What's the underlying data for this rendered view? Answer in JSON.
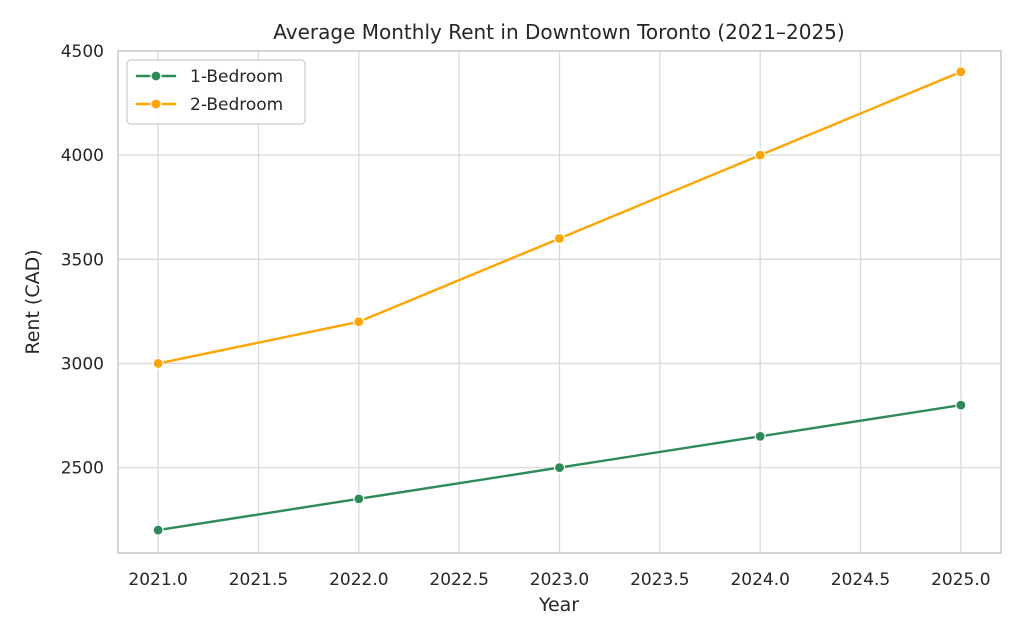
{
  "chart_data": {
    "type": "line",
    "title": "Average Monthly Rent in Downtown Toronto (2021–2025)",
    "xlabel": "Year",
    "ylabel": "Rent (CAD)",
    "x": [
      2021,
      2022,
      2023,
      2024,
      2025
    ],
    "xlim": [
      2020.8,
      2025.2
    ],
    "ylim": [
      2090,
      4500
    ],
    "x_ticks": [
      2021.0,
      2021.5,
      2022.0,
      2022.5,
      2023.0,
      2023.5,
      2024.0,
      2024.5,
      2025.0
    ],
    "x_tick_labels": [
      "2021.0",
      "2021.5",
      "2022.0",
      "2022.5",
      "2023.0",
      "2023.5",
      "2024.0",
      "2024.5",
      "2025.0"
    ],
    "y_ticks": [
      2500,
      3000,
      3500,
      4000,
      4500
    ],
    "y_tick_labels": [
      "2500",
      "3000",
      "3500",
      "4000",
      "4500"
    ],
    "grid": true,
    "legend": "top-left",
    "series": [
      {
        "name": "1-Bedroom",
        "color": "#2e8b57",
        "marker": "circle",
        "values": [
          2200,
          2350,
          2500,
          2650,
          2800
        ]
      },
      {
        "name": "2-Bedroom",
        "color": "#ffa500",
        "marker": "circle",
        "values": [
          3000,
          3200,
          3600,
          4000,
          4400
        ]
      }
    ]
  }
}
